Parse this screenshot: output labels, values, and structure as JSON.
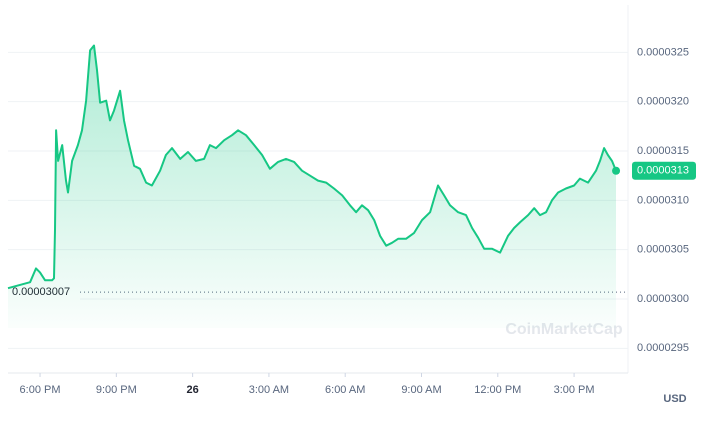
{
  "chart_data": {
    "type": "line",
    "x": [
      16.74,
      17.61,
      17.84,
      18.0,
      18.2,
      18.47,
      18.55,
      18.59,
      18.63,
      18.71,
      18.87,
      19.02,
      19.1,
      19.26,
      19.49,
      19.65,
      19.81,
      19.97,
      20.12,
      20.24,
      20.36,
      20.6,
      20.75,
      20.91,
      21.15,
      21.3,
      21.46,
      21.7,
      21.93,
      22.17,
      22.4,
      22.72,
      22.95,
      23.19,
      23.51,
      23.82,
      24.13,
      24.45,
      24.68,
      24.92,
      25.24,
      25.55,
      25.79,
      26.1,
      26.42,
      26.73,
      27.04,
      27.36,
      27.67,
      27.99,
      28.3,
      28.62,
      28.93,
      29.25,
      29.56,
      29.88,
      30.19,
      30.43,
      30.66,
      30.9,
      31.14,
      31.37,
      31.61,
      31.84,
      32.08,
      32.39,
      32.71,
      33.02,
      33.34,
      33.65,
      33.89,
      34.12,
      34.44,
      34.75,
      34.99,
      35.23,
      35.46,
      35.77,
      36.09,
      36.4,
      36.64,
      36.88,
      37.19,
      37.43,
      37.66,
      37.9,
      38.13,
      38.37,
      38.68,
      39.0,
      39.23,
      39.55,
      39.86,
      40.02,
      40.18,
      40.33,
      40.49,
      40.65
    ],
    "series": [
      {
        "color": "#16c784",
        "values": [
          3.011e-05,
          3.017e-05,
          3.031e-05,
          3.027e-05,
          3.019e-05,
          3.019e-05,
          3.021e-05,
          3.07e-05,
          3.171e-05,
          3.14e-05,
          3.156e-05,
          3.12e-05,
          3.108e-05,
          3.14e-05,
          3.156e-05,
          3.171e-05,
          3.201e-05,
          3.252e-05,
          3.257e-05,
          3.232e-05,
          3.199e-05,
          3.201e-05,
          3.181e-05,
          3.191e-05,
          3.211e-05,
          3.181e-05,
          3.161e-05,
          3.135e-05,
          3.132e-05,
          3.118e-05,
          3.115e-05,
          3.13e-05,
          3.146e-05,
          3.153e-05,
          3.142e-05,
          3.149e-05,
          3.14e-05,
          3.142e-05,
          3.156e-05,
          3.153e-05,
          3.161e-05,
          3.166e-05,
          3.171e-05,
          3.166e-05,
          3.156e-05,
          3.146e-05,
          3.132e-05,
          3.139e-05,
          3.142e-05,
          3.139e-05,
          3.13e-05,
          3.125e-05,
          3.12e-05,
          3.118e-05,
          3.112e-05,
          3.105e-05,
          3.095e-05,
          3.088e-05,
          3.095e-05,
          3.09e-05,
          3.08e-05,
          3.064e-05,
          3.054e-05,
          3.057e-05,
          3.061e-05,
          3.061e-05,
          3.067e-05,
          3.08e-05,
          3.088e-05,
          3.115e-05,
          3.105e-05,
          3.095e-05,
          3.088e-05,
          3.085e-05,
          3.072e-05,
          3.062e-05,
          3.051e-05,
          3.051e-05,
          3.047e-05,
          3.064e-05,
          3.072e-05,
          3.078e-05,
          3.085e-05,
          3.092e-05,
          3.085e-05,
          3.088e-05,
          3.1e-05,
          3.108e-05,
          3.112e-05,
          3.115e-05,
          3.122e-05,
          3.118e-05,
          3.13e-05,
          3.14e-05,
          3.153e-05,
          3.146e-05,
          3.14e-05,
          3.13e-05
        ]
      }
    ],
    "xlim": [
      16.74,
      41.12
    ],
    "xticks": [
      {
        "value": 18,
        "label": "6:00 PM"
      },
      {
        "value": 21,
        "label": "9:00 PM"
      },
      {
        "value": 24,
        "label": "26"
      },
      {
        "value": 27,
        "label": "3:00 AM"
      },
      {
        "value": 30,
        "label": "6:00 AM"
      },
      {
        "value": 33,
        "label": "9:00 AM"
      },
      {
        "value": 36,
        "label": "12:00 PM"
      },
      {
        "value": 39,
        "label": "3:00 PM"
      }
    ],
    "ylim": [
      2.925e-05,
      3.298e-05
    ],
    "yticks": [
      2.95e-05,
      {
        "value": 3e-05,
        "label": "0.0000300"
      },
      3.05e-05,
      {
        "value": 3.1e-05,
        "label": "0.0000310"
      },
      3.15e-05,
      {
        "value": 3.2e-05,
        "label": "0.0000320"
      },
      3.25e-05
    ],
    "grid": true,
    "reference_line": 3.007e-05,
    "current_price": 3.13e-05,
    "y_unit": "USD",
    "watermark": "CoinMarketCap"
  }
}
